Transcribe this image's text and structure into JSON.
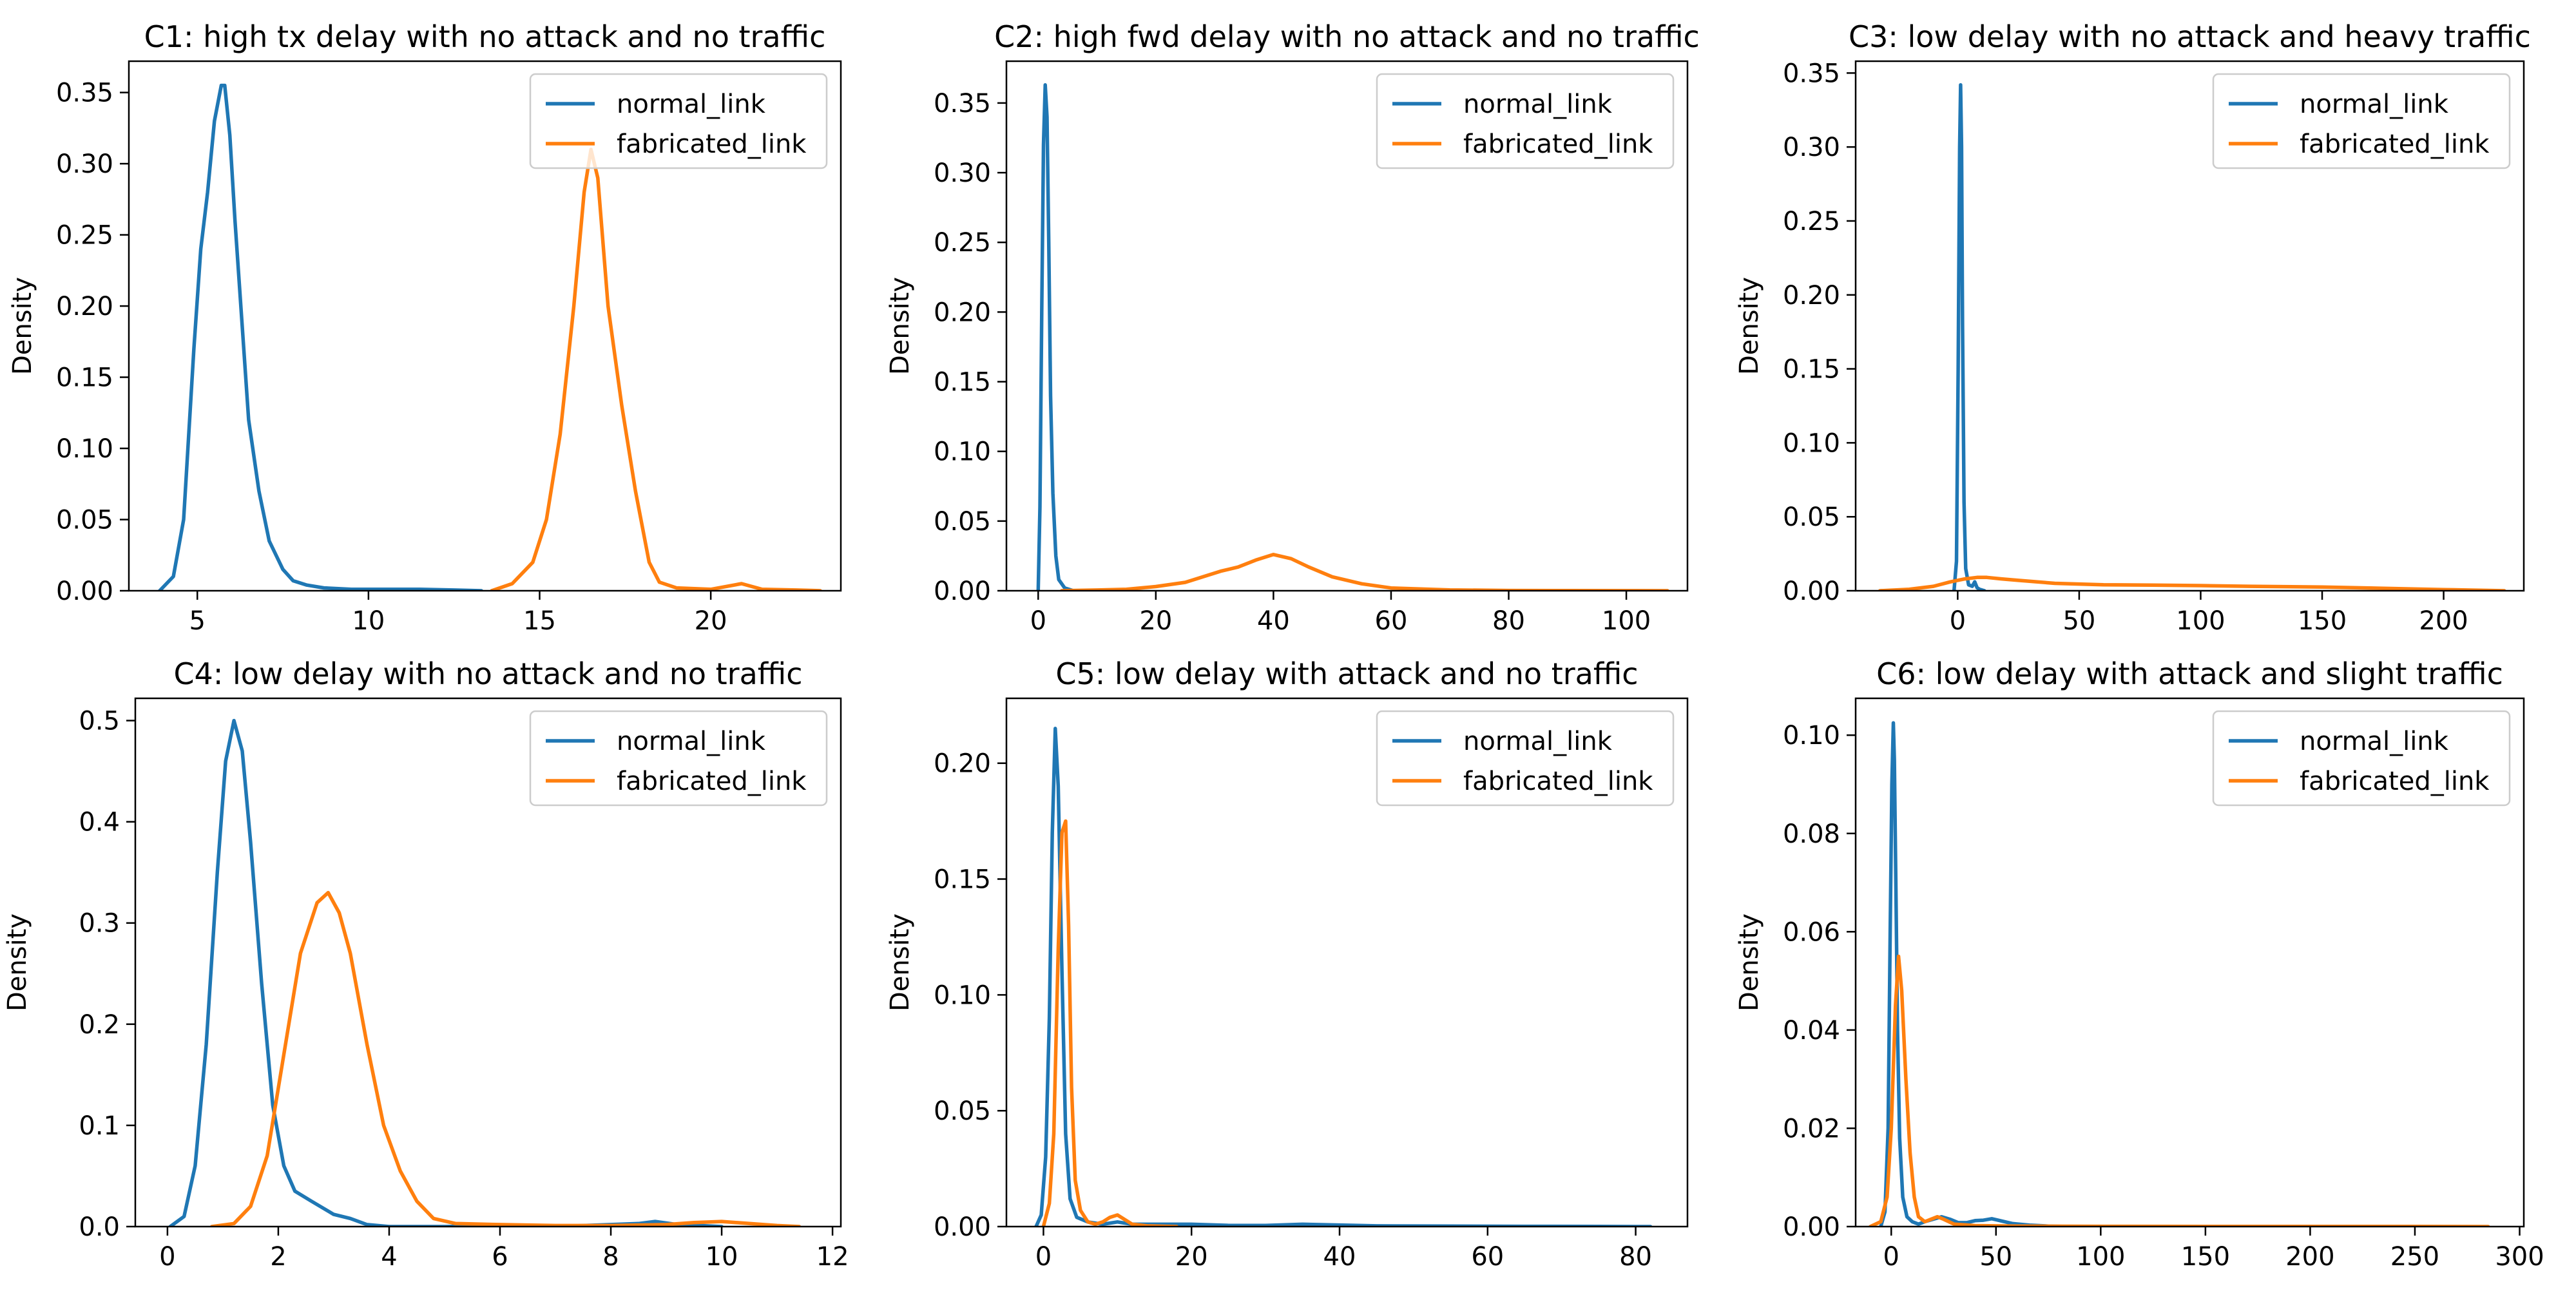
{
  "legend_labels": [
    "normal_link",
    "fabricated_link"
  ],
  "series_colors": {
    "normal_link": "#1f77b4",
    "fabricated_link": "#ff7f0e"
  },
  "chart_data": [
    {
      "type": "line",
      "title": "C1: high tx delay with no attack and no traffic",
      "xlabel": "",
      "ylabel": "Density",
      "xlim": [
        3.0,
        23.8
      ],
      "ylim": [
        0,
        0.372
      ],
      "xticks": [
        5,
        10,
        15,
        20
      ],
      "xtick_labels": [
        "5",
        "10",
        "15",
        "20"
      ],
      "yticks": [
        0,
        0.05,
        0.1,
        0.15,
        0.2,
        0.25,
        0.3,
        0.35
      ],
      "ytick_labels": [
        "0.00",
        "0.05",
        "0.10",
        "0.15",
        "0.20",
        "0.25",
        "0.30",
        "0.35"
      ],
      "legend": "top-right",
      "grid": false,
      "series": [
        {
          "name": "normal_link",
          "color": "#1f77b4",
          "x": [
            3.9,
            4.3,
            4.6,
            4.9,
            5.1,
            5.3,
            5.5,
            5.7,
            5.8,
            5.95,
            6.1,
            6.3,
            6.5,
            6.8,
            7.1,
            7.5,
            7.8,
            8.2,
            8.7,
            9.5,
            10.5,
            11.5,
            12.5,
            13.3
          ],
          "y": [
            0,
            0.01,
            0.05,
            0.17,
            0.24,
            0.28,
            0.33,
            0.355,
            0.355,
            0.32,
            0.26,
            0.19,
            0.12,
            0.07,
            0.035,
            0.015,
            0.007,
            0.004,
            0.002,
            0.001,
            0.001,
            0.001,
            0.0005,
            0
          ]
        },
        {
          "name": "fabricated_link",
          "color": "#ff7f0e",
          "x": [
            13.6,
            14.2,
            14.8,
            15.2,
            15.6,
            16.0,
            16.3,
            16.5,
            16.7,
            17.0,
            17.4,
            17.8,
            18.2,
            18.5,
            19.0,
            20.0,
            20.9,
            21.5,
            22.5,
            23.2
          ],
          "y": [
            0,
            0.005,
            0.02,
            0.05,
            0.11,
            0.2,
            0.28,
            0.31,
            0.29,
            0.2,
            0.13,
            0.07,
            0.02,
            0.006,
            0.002,
            0.001,
            0.005,
            0.001,
            0.0005,
            0
          ]
        }
      ]
    },
    {
      "type": "line",
      "title": "C2: high fwd delay with no attack and no traffic",
      "xlabel": "",
      "ylabel": "Density",
      "xlim": [
        -5.4,
        110.4
      ],
      "ylim": [
        0,
        0.38
      ],
      "xticks": [
        0,
        20,
        40,
        60,
        80,
        100
      ],
      "xtick_labels": [
        "0",
        "20",
        "40",
        "60",
        "80",
        "100"
      ],
      "yticks": [
        0,
        0.05,
        0.1,
        0.15,
        0.2,
        0.25,
        0.3,
        0.35
      ],
      "ytick_labels": [
        "0.00",
        "0.05",
        "0.10",
        "0.15",
        "0.20",
        "0.25",
        "0.30",
        "0.35"
      ],
      "legend": "top-right",
      "grid": false,
      "series": [
        {
          "name": "normal_link",
          "color": "#1f77b4",
          "x": [
            0.0,
            0.3,
            0.6,
            0.9,
            1.2,
            1.5,
            1.8,
            2.1,
            2.5,
            3.0,
            3.5,
            4.5,
            6.0
          ],
          "y": [
            0,
            0.06,
            0.2,
            0.32,
            0.363,
            0.34,
            0.25,
            0.14,
            0.07,
            0.025,
            0.008,
            0.002,
            0
          ]
        },
        {
          "name": "fabricated_link",
          "color": "#ff7f0e",
          "x": [
            4,
            10,
            15,
            20,
            25,
            28,
            31,
            34,
            37,
            40,
            43,
            46,
            50,
            55,
            60,
            70,
            80,
            90,
            100,
            107
          ],
          "y": [
            0,
            0.0005,
            0.001,
            0.003,
            0.006,
            0.01,
            0.014,
            0.017,
            0.022,
            0.026,
            0.023,
            0.017,
            0.01,
            0.005,
            0.002,
            0.0006,
            0.0002,
            0.0001,
            5e-05,
            0
          ]
        }
      ]
    },
    {
      "type": "line",
      "title": "C3: low delay with no attack and heavy traffic",
      "xlabel": "",
      "ylabel": "Density",
      "xlim": [
        -42,
        233
      ],
      "ylim": [
        0,
        0.358
      ],
      "xticks": [
        0,
        50,
        100,
        150,
        200
      ],
      "xtick_labels": [
        "0",
        "50",
        "100",
        "150",
        "200"
      ],
      "yticks": [
        0,
        0.05,
        0.1,
        0.15,
        0.2,
        0.25,
        0.3,
        0.35
      ],
      "ytick_labels": [
        "0.00",
        "0.05",
        "0.10",
        "0.15",
        "0.20",
        "0.25",
        "0.30",
        "0.35"
      ],
      "legend": "top-right",
      "grid": false,
      "series": [
        {
          "name": "normal_link",
          "color": "#1f77b4",
          "x": [
            -1.5,
            -0.5,
            0.2,
            0.8,
            1.2,
            1.6,
            2.0,
            2.6,
            3.3,
            4.5,
            6,
            7,
            8,
            9,
            11
          ],
          "y": [
            0,
            0.02,
            0.15,
            0.3,
            0.342,
            0.3,
            0.18,
            0.06,
            0.015,
            0.004,
            0.003,
            0.006,
            0.002,
            0.001,
            0
          ]
        },
        {
          "name": "fabricated_link",
          "color": "#ff7f0e",
          "x": [
            -32,
            -20,
            -10,
            -3,
            3,
            8,
            12,
            18,
            25,
            40,
            60,
            80,
            100,
            120,
            150,
            180,
            200,
            225
          ],
          "y": [
            0,
            0.001,
            0.003,
            0.006,
            0.008,
            0.009,
            0.009,
            0.008,
            0.007,
            0.005,
            0.004,
            0.0038,
            0.0035,
            0.003,
            0.0025,
            0.0015,
            0.0008,
            0
          ]
        }
      ]
    },
    {
      "type": "line",
      "title": "C4: low delay with no attack and no traffic",
      "xlabel": "",
      "ylabel": "Density",
      "xlim": [
        -0.58,
        12.15
      ],
      "ylim": [
        0,
        0.522
      ],
      "xticks": [
        0,
        2,
        4,
        6,
        8,
        10,
        12
      ],
      "xtick_labels": [
        "0",
        "2",
        "4",
        "6",
        "8",
        "10",
        "12"
      ],
      "yticks": [
        0,
        0.1,
        0.2,
        0.3,
        0.4,
        0.5
      ],
      "ytick_labels": [
        "0.0",
        "0.1",
        "0.2",
        "0.3",
        "0.4",
        "0.5"
      ],
      "legend": "top-right",
      "grid": false,
      "series": [
        {
          "name": "normal_link",
          "color": "#1f77b4",
          "x": [
            0.05,
            0.3,
            0.5,
            0.7,
            0.9,
            1.05,
            1.2,
            1.35,
            1.5,
            1.7,
            1.9,
            2.1,
            2.3,
            2.6,
            3.0,
            3.3,
            3.6,
            4.0,
            5.0,
            6,
            7,
            8,
            8.5,
            8.8,
            9.2,
            9.6,
            10.0
          ],
          "y": [
            0,
            0.01,
            0.06,
            0.18,
            0.35,
            0.46,
            0.5,
            0.47,
            0.38,
            0.24,
            0.12,
            0.06,
            0.035,
            0.025,
            0.012,
            0.008,
            0.002,
            0,
            0,
            0.001,
            0,
            0.002,
            0.003,
            0.005,
            0.002,
            0.001,
            0
          ]
        },
        {
          "name": "fabricated_link",
          "color": "#ff7f0e",
          "x": [
            0.8,
            1.2,
            1.5,
            1.8,
            2.1,
            2.4,
            2.7,
            2.9,
            3.1,
            3.3,
            3.6,
            3.9,
            4.2,
            4.5,
            4.8,
            5.2,
            6,
            7,
            8,
            9,
            9.5,
            10,
            10.5,
            11,
            11.4
          ],
          "y": [
            0,
            0.003,
            0.02,
            0.07,
            0.17,
            0.27,
            0.32,
            0.33,
            0.31,
            0.27,
            0.18,
            0.1,
            0.055,
            0.025,
            0.008,
            0.003,
            0.002,
            0.001,
            0.001,
            0.002,
            0.004,
            0.005,
            0.003,
            0.001,
            0
          ]
        }
      ]
    },
    {
      "type": "line",
      "title": "C5: low delay with attack and no traffic",
      "xlabel": "",
      "ylabel": "Density",
      "xlim": [
        -5,
        87
      ],
      "ylim": [
        0,
        0.228
      ],
      "xticks": [
        0,
        20,
        40,
        60,
        80
      ],
      "xtick_labels": [
        "0",
        "20",
        "40",
        "60",
        "80"
      ],
      "yticks": [
        0,
        0.05,
        0.1,
        0.15,
        0.2
      ],
      "ytick_labels": [
        "0.00",
        "0.05",
        "0.10",
        "0.15",
        "0.20"
      ],
      "legend": "top-right",
      "grid": false,
      "series": [
        {
          "name": "normal_link",
          "color": "#1f77b4",
          "x": [
            -1.0,
            -0.3,
            0.3,
            0.8,
            1.2,
            1.6,
            2.0,
            2.5,
            3.0,
            3.6,
            4.5,
            6,
            8,
            10,
            12,
            15,
            20,
            25,
            30,
            35,
            38,
            45,
            55,
            65,
            75,
            82
          ],
          "y": [
            0,
            0.005,
            0.03,
            0.09,
            0.17,
            0.215,
            0.19,
            0.11,
            0.04,
            0.012,
            0.004,
            0.002,
            0.001,
            0.002,
            0.001,
            0.001,
            0.001,
            0.0005,
            0.0005,
            0.001,
            0.0008,
            0.0003,
            0.0002,
            0.0001,
            5e-05,
            0
          ]
        },
        {
          "name": "fabricated_link",
          "color": "#ff7f0e",
          "x": [
            0.0,
            0.8,
            1.4,
            2.0,
            2.5,
            3.0,
            3.4,
            3.8,
            4.3,
            5.0,
            6.0,
            7.0,
            8.0,
            9.0,
            10.0,
            11.0,
            12.0,
            14.0,
            18.0
          ],
          "y": [
            0,
            0.01,
            0.04,
            0.12,
            0.17,
            0.175,
            0.13,
            0.06,
            0.02,
            0.007,
            0.002,
            0.001,
            0.002,
            0.004,
            0.005,
            0.003,
            0.001,
            0.0003,
            0
          ]
        }
      ]
    },
    {
      "type": "line",
      "title": "C6: low delay with attack and slight traffic",
      "xlabel": "",
      "ylabel": "Density",
      "xlim": [
        -17,
        302
      ],
      "ylim": [
        0,
        0.1075
      ],
      "xticks": [
        0,
        50,
        100,
        150,
        200,
        250,
        300
      ],
      "xtick_labels": [
        "0",
        "50",
        "100",
        "150",
        "200",
        "250",
        "300"
      ],
      "yticks": [
        0,
        0.02,
        0.04,
        0.06,
        0.08,
        0.1
      ],
      "ytick_labels": [
        "0.00",
        "0.02",
        "0.04",
        "0.06",
        "0.08",
        "0.10"
      ],
      "legend": "top-right",
      "grid": false,
      "series": [
        {
          "name": "normal_link",
          "color": "#1f77b4",
          "x": [
            -5,
            -3,
            -1.5,
            -0.5,
            0.3,
            1.0,
            1.5,
            2.2,
            3.0,
            4.0,
            5.5,
            7.5,
            10,
            13,
            16,
            20,
            24,
            28,
            32,
            36,
            40,
            44,
            48,
            52,
            58,
            66,
            75,
            85
          ],
          "y": [
            0,
            0.003,
            0.02,
            0.06,
            0.09,
            0.1025,
            0.095,
            0.07,
            0.04,
            0.018,
            0.006,
            0.002,
            0.001,
            0.0005,
            0.001,
            0.0015,
            0.002,
            0.0015,
            0.0008,
            0.0008,
            0.0012,
            0.0013,
            0.0016,
            0.0012,
            0.0006,
            0.0003,
            0.0001,
            0
          ]
        },
        {
          "name": "fabricated_link",
          "color": "#ff7f0e",
          "x": [
            -10,
            -5,
            -2,
            0,
            2,
            3.5,
            5,
            7,
            9,
            11,
            13,
            16,
            19,
            22,
            25,
            30,
            40,
            60,
            100,
            150,
            200,
            250,
            285
          ],
          "y": [
            0,
            0.001,
            0.006,
            0.02,
            0.045,
            0.055,
            0.048,
            0.03,
            0.015,
            0.006,
            0.002,
            0.001,
            0.0015,
            0.002,
            0.0015,
            0.0005,
            0.0002,
            0.0001,
            5e-05,
            4e-05,
            3e-05,
            2e-05,
            0
          ]
        }
      ]
    }
  ]
}
